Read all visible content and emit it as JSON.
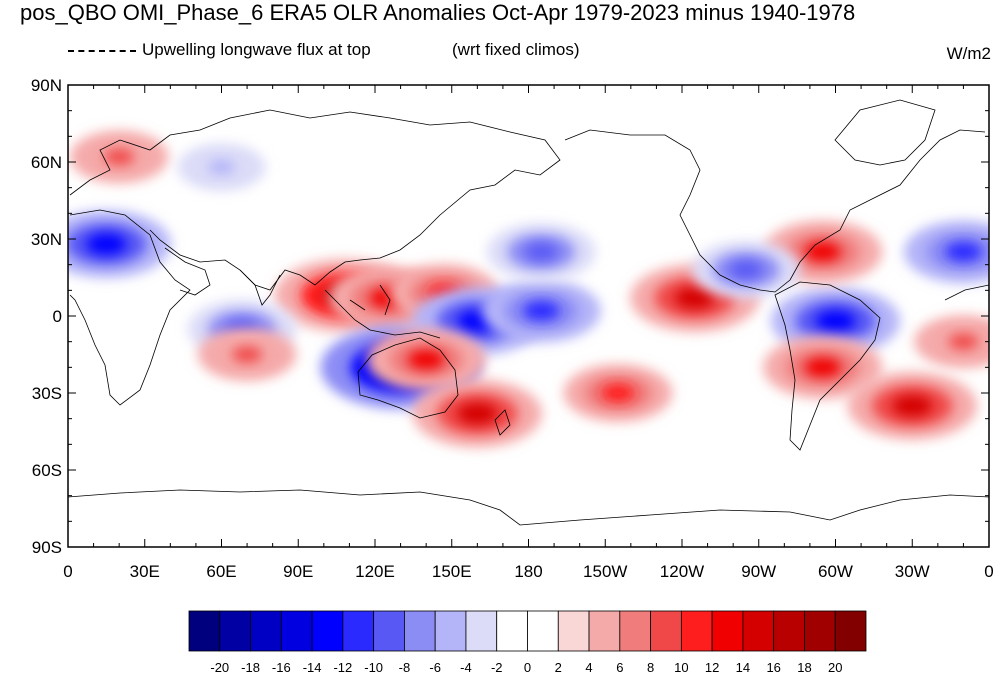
{
  "title": "pos_QBO OMI_Phase_6 ERA5 OLR Anomalies Oct-Apr 1979-2023 minus 1940-1978",
  "legend_line_label": "Upwelling longwave flux at top",
  "note": "(wrt fixed climos)",
  "units": "W/m2",
  "lat_labels": [
    "90N",
    "60N",
    "30N",
    "0",
    "30S",
    "60S",
    "90S"
  ],
  "lon_labels": [
    "0",
    "30E",
    "60E",
    "90E",
    "120E",
    "150E",
    "180",
    "150W",
    "120W",
    "90W",
    "60W",
    "30W",
    "0"
  ],
  "colorbar": {
    "labels": [
      "-20",
      "-18",
      "-16",
      "-14",
      "-12",
      "-10",
      "-8",
      "-6",
      "-4",
      "-2",
      "0",
      "2",
      "4",
      "6",
      "8",
      "10",
      "12",
      "14",
      "16",
      "18",
      "20"
    ],
    "colors": [
      "#00007f",
      "#0000a3",
      "#0000c4",
      "#0000e0",
      "#0000ff",
      "#2a2aff",
      "#5858f5",
      "#8c8cf5",
      "#b4b4f8",
      "#dcdcf8",
      "#ffffff",
      "#ffffff",
      "#fad7d7",
      "#f5aaaa",
      "#f07c7c",
      "#f04848",
      "#ff1e1e",
      "#f00000",
      "#d40000",
      "#b80000",
      "#a00000",
      "#820000"
    ]
  },
  "anomalies": [
    {
      "lon": 108,
      "lat": 8,
      "value": 16
    },
    {
      "lon": 125,
      "lat": 7,
      "value": 12
    },
    {
      "lon": 147,
      "lat": 9,
      "value": 10
    },
    {
      "lon": 130,
      "lat": -20,
      "value": -20
    },
    {
      "lon": 160,
      "lat": -2,
      "value": -14
    },
    {
      "lon": 185,
      "lat": 2,
      "value": -12
    },
    {
      "lon": 140,
      "lat": -17,
      "value": 12
    },
    {
      "lon": 160,
      "lat": -38,
      "value": 14
    },
    {
      "lon": 215,
      "lat": -30,
      "value": 10
    },
    {
      "lon": 245,
      "lat": 7,
      "value": 14
    },
    {
      "lon": 300,
      "lat": -2,
      "value": -14
    },
    {
      "lon": 295,
      "lat": -20,
      "value": 12
    },
    {
      "lon": 330,
      "lat": -35,
      "value": 14
    },
    {
      "lon": 295,
      "lat": 25,
      "value": 12
    },
    {
      "lon": 15,
      "lat": 28,
      "value": -14
    },
    {
      "lon": 350,
      "lat": 25,
      "value": -12
    },
    {
      "lon": 265,
      "lat": 18,
      "value": -10
    },
    {
      "lon": 185,
      "lat": 25,
      "value": -10
    },
    {
      "lon": 68,
      "lat": -5,
      "value": -10
    },
    {
      "lon": 20,
      "lat": 62,
      "value": 8
    },
    {
      "lon": 60,
      "lat": 58,
      "value": -6
    },
    {
      "lon": 70,
      "lat": -15,
      "value": 8
    },
    {
      "lon": 350,
      "lat": -10,
      "value": 8
    }
  ]
}
